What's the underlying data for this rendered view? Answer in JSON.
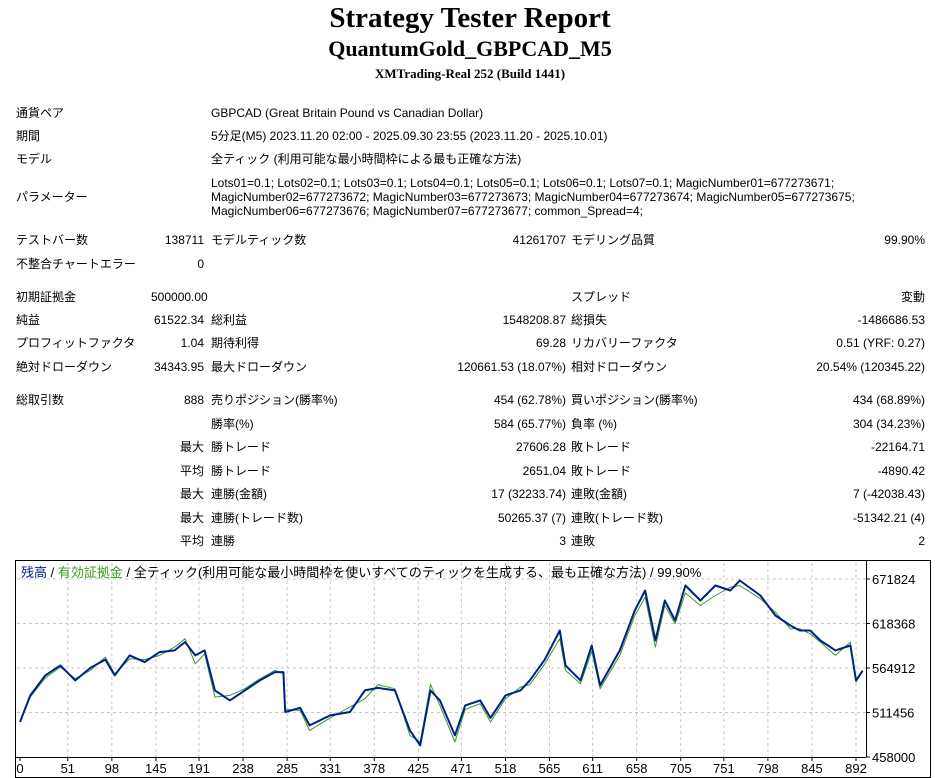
{
  "header": {
    "title": "Strategy Tester Report",
    "subtitle": "QuantumGold_GBPCAD_M5",
    "server": "XMTrading-Real 252 (Build 1441)"
  },
  "info": [
    {
      "label": "通貨ペア",
      "value": "GBPCAD (Great Britain Pound vs Canadian Dollar)"
    },
    {
      "label": "期間",
      "value": "5分足(M5) 2023.11.20 02:00 - 2025.09.30 23:55 (2023.11.20 - 2025.10.01)"
    },
    {
      "label": "モデル",
      "value": "全ティック (利用可能な最小時間枠による最も正確な方法)"
    },
    {
      "label": "パラメーター",
      "lines": [
        "Lots01=0.1; Lots02=0.1; Lots03=0.1; Lots04=0.1; Lots05=0.1; Lots06=0.1; Lots07=0.1; MagicNumber01=677273671;",
        "MagicNumber02=677273672; MagicNumber03=677273673; MagicNumber04=677273674; MagicNumber05=677273675;",
        "MagicNumber06=677273676; MagicNumber07=677273677; common_Spread=4;"
      ]
    }
  ],
  "stats": [
    [
      "テストバー数",
      "138711",
      "モデルティック数",
      "41261707",
      "モデリング品質",
      "99.90%"
    ],
    [
      "不整合チャートエラー",
      "0",
      "",
      "",
      "",
      ""
    ],
    [
      "初期証拠金",
      "500000.00",
      "",
      "",
      "スプレッド",
      "変動"
    ],
    [
      "純益",
      "61522.34",
      "総利益",
      "1548208.87",
      "総損失",
      "-1486686.53"
    ],
    [
      "プロフィットファクタ",
      "1.04",
      "期待利得",
      "69.28",
      "リカバリーファクタ",
      "0.51 (YRF: 0.27)"
    ],
    [
      "絶対ドローダウン",
      "34343.95",
      "最大ドローダウン",
      "120661.53 (18.07%)",
      "相対ドローダウン",
      "20.54% (120345.22)"
    ],
    [
      "総取引数",
      "888",
      "売りポジション(勝率%)",
      "454 (62.78%)",
      "買いポジション(勝率%)",
      "434 (68.89%)"
    ],
    [
      "",
      "",
      "勝率(%)",
      "584 (65.77%)",
      "負率 (%)",
      "304 (34.23%)"
    ],
    [
      "",
      "最大",
      "勝トレード",
      "27606.28",
      "敗トレード",
      "-22164.71"
    ],
    [
      "",
      "平均",
      "勝トレード",
      "2651.04",
      "敗トレード",
      "-4890.42"
    ],
    [
      "",
      "最大",
      "連勝(金額)",
      "17 (32233.74)",
      "連敗(金額)",
      "7 (-42038.43)"
    ],
    [
      "",
      "最大",
      "連勝(トレード数)",
      "50265.37 (7)",
      "連敗(トレード数)",
      "-51342.21 (4)"
    ],
    [
      "",
      "平均",
      "連勝",
      "3",
      "連敗",
      "2"
    ]
  ],
  "chart_data": {
    "type": "line",
    "legend": {
      "balance": "残高",
      "sep1": " / ",
      "equity": "有効証拠金",
      "sep2": " / ",
      "model": "全ティック(利用可能な最小時間枠を使いすべてのティックを生成する、最も正確な方法)",
      "sep3": " / ",
      "quality": "99.90%"
    },
    "colors": {
      "balance": "#00208c",
      "equity": "#3a9a20",
      "grid": "#c8c8c8"
    },
    "ylim": [
      458000,
      671824
    ],
    "xlim": [
      0,
      899
    ],
    "yticks": [
      "671824",
      "618368",
      "564912",
      "511456",
      "458000"
    ],
    "xticks": [
      "0",
      "51",
      "98",
      "145",
      "191",
      "238",
      "285",
      "331",
      "378",
      "425",
      "471",
      "518",
      "565",
      "611",
      "658",
      "705",
      "751",
      "798",
      "845",
      "892"
    ],
    "balance": {
      "x": [
        0,
        11,
        27,
        43,
        59,
        75,
        91,
        101,
        117,
        133,
        149,
        165,
        176,
        187,
        197,
        208,
        224,
        240,
        256,
        272,
        281,
        283,
        299,
        309,
        331,
        352,
        368,
        382,
        400,
        416,
        427,
        438,
        448,
        464,
        475,
        491,
        502,
        518,
        534,
        544,
        560,
        576,
        582,
        598,
        610,
        619,
        640,
        656,
        667,
        678,
        688,
        699,
        710,
        726,
        742,
        758,
        768,
        790,
        806,
        822,
        832,
        843,
        854,
        870,
        886,
        892,
        899
      ],
      "y": [
        500000,
        532000,
        556000,
        568000,
        550000,
        565000,
        575000,
        556000,
        580000,
        572000,
        584000,
        586000,
        596000,
        580000,
        586000,
        538000,
        526000,
        538000,
        550000,
        560000,
        560000,
        512000,
        517000,
        496000,
        508000,
        512000,
        538000,
        541000,
        538000,
        490000,
        472000,
        538000,
        526000,
        484000,
        520000,
        526000,
        505000,
        532000,
        538000,
        550000,
        575000,
        610000,
        568000,
        550000,
        592000,
        544000,
        586000,
        634000,
        658000,
        598000,
        646000,
        622000,
        664000,
        646000,
        664000,
        658000,
        670000,
        652000,
        628000,
        616000,
        610000,
        610000,
        598000,
        586000,
        592000,
        550000,
        561522
      ]
    },
    "equity": {
      "x": [
        0,
        11,
        27,
        43,
        59,
        75,
        91,
        101,
        117,
        133,
        149,
        165,
        176,
        187,
        197,
        208,
        224,
        240,
        256,
        272,
        281,
        283,
        299,
        309,
        331,
        352,
        368,
        382,
        400,
        416,
        427,
        438,
        448,
        464,
        475,
        491,
        502,
        518,
        534,
        544,
        560,
        576,
        582,
        598,
        610,
        619,
        640,
        656,
        667,
        678,
        688,
        699,
        710,
        726,
        742,
        758,
        768,
        790,
        806,
        822,
        832,
        843,
        854,
        870,
        886,
        892,
        899
      ],
      "y": [
        500000,
        530000,
        553000,
        566000,
        552000,
        562000,
        578000,
        558000,
        576000,
        575000,
        580000,
        590000,
        600000,
        570000,
        582000,
        530000,
        532000,
        540000,
        552000,
        562000,
        558000,
        515000,
        514000,
        490000,
        505000,
        518000,
        528000,
        545000,
        540000,
        484000,
        476000,
        545000,
        520000,
        476000,
        515000,
        522000,
        500000,
        528000,
        542000,
        545000,
        570000,
        600000,
        562000,
        546000,
        585000,
        540000,
        580000,
        628000,
        650000,
        590000,
        640000,
        618000,
        655000,
        640000,
        652000,
        662000,
        664000,
        648000,
        632000,
        612000,
        612000,
        606000,
        596000,
        580000,
        596000,
        548000,
        562000
      ]
    }
  }
}
